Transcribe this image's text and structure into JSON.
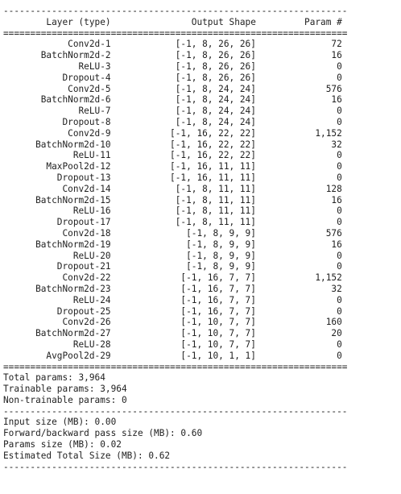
{
  "summary": {
    "separator_dash": "----------------------------------------------------------------",
    "separator_eq": "================================================================",
    "header": {
      "layer": "Layer (type)",
      "output": "Output Shape",
      "params": "Param #"
    },
    "rows": [
      {
        "layer": "Conv2d-1",
        "shape": "[-1, 8, 26, 26]",
        "params": "72"
      },
      {
        "layer": "BatchNorm2d-2",
        "shape": "[-1, 8, 26, 26]",
        "params": "16"
      },
      {
        "layer": "ReLU-3",
        "shape": "[-1, 8, 26, 26]",
        "params": "0"
      },
      {
        "layer": "Dropout-4",
        "shape": "[-1, 8, 26, 26]",
        "params": "0"
      },
      {
        "layer": "Conv2d-5",
        "shape": "[-1, 8, 24, 24]",
        "params": "576"
      },
      {
        "layer": "BatchNorm2d-6",
        "shape": "[-1, 8, 24, 24]",
        "params": "16"
      },
      {
        "layer": "ReLU-7",
        "shape": "[-1, 8, 24, 24]",
        "params": "0"
      },
      {
        "layer": "Dropout-8",
        "shape": "[-1, 8, 24, 24]",
        "params": "0"
      },
      {
        "layer": "Conv2d-9",
        "shape": "[-1, 16, 22, 22]",
        "params": "1,152"
      },
      {
        "layer": "BatchNorm2d-10",
        "shape": "[-1, 16, 22, 22]",
        "params": "32"
      },
      {
        "layer": "ReLU-11",
        "shape": "[-1, 16, 22, 22]",
        "params": "0"
      },
      {
        "layer": "MaxPool2d-12",
        "shape": "[-1, 16, 11, 11]",
        "params": "0"
      },
      {
        "layer": "Dropout-13",
        "shape": "[-1, 16, 11, 11]",
        "params": "0"
      },
      {
        "layer": "Conv2d-14",
        "shape": "[-1, 8, 11, 11]",
        "params": "128"
      },
      {
        "layer": "BatchNorm2d-15",
        "shape": "[-1, 8, 11, 11]",
        "params": "16"
      },
      {
        "layer": "ReLU-16",
        "shape": "[-1, 8, 11, 11]",
        "params": "0"
      },
      {
        "layer": "Dropout-17",
        "shape": "[-1, 8, 11, 11]",
        "params": "0"
      },
      {
        "layer": "Conv2d-18",
        "shape": "[-1, 8, 9, 9]",
        "params": "576"
      },
      {
        "layer": "BatchNorm2d-19",
        "shape": "[-1, 8, 9, 9]",
        "params": "16"
      },
      {
        "layer": "ReLU-20",
        "shape": "[-1, 8, 9, 9]",
        "params": "0"
      },
      {
        "layer": "Dropout-21",
        "shape": "[-1, 8, 9, 9]",
        "params": "0"
      },
      {
        "layer": "Conv2d-22",
        "shape": "[-1, 16, 7, 7]",
        "params": "1,152"
      },
      {
        "layer": "BatchNorm2d-23",
        "shape": "[-1, 16, 7, 7]",
        "params": "32"
      },
      {
        "layer": "ReLU-24",
        "shape": "[-1, 16, 7, 7]",
        "params": "0"
      },
      {
        "layer": "Dropout-25",
        "shape": "[-1, 16, 7, 7]",
        "params": "0"
      },
      {
        "layer": "Conv2d-26",
        "shape": "[-1, 10, 7, 7]",
        "params": "160"
      },
      {
        "layer": "BatchNorm2d-27",
        "shape": "[-1, 10, 7, 7]",
        "params": "20"
      },
      {
        "layer": "ReLU-28",
        "shape": "[-1, 10, 7, 7]",
        "params": "0"
      },
      {
        "layer": "AvgPool2d-29",
        "shape": "[-1, 10, 1, 1]",
        "params": "0"
      }
    ],
    "totals": [
      "Total params: 3,964",
      "Trainable params: 3,964",
      "Non-trainable params: 0"
    ],
    "sizes": [
      "Input size (MB): 0.00",
      "Forward/backward pass size (MB): 0.60",
      "Params size (MB): 0.02",
      "Estimated Total Size (MB): 0.62"
    ]
  }
}
